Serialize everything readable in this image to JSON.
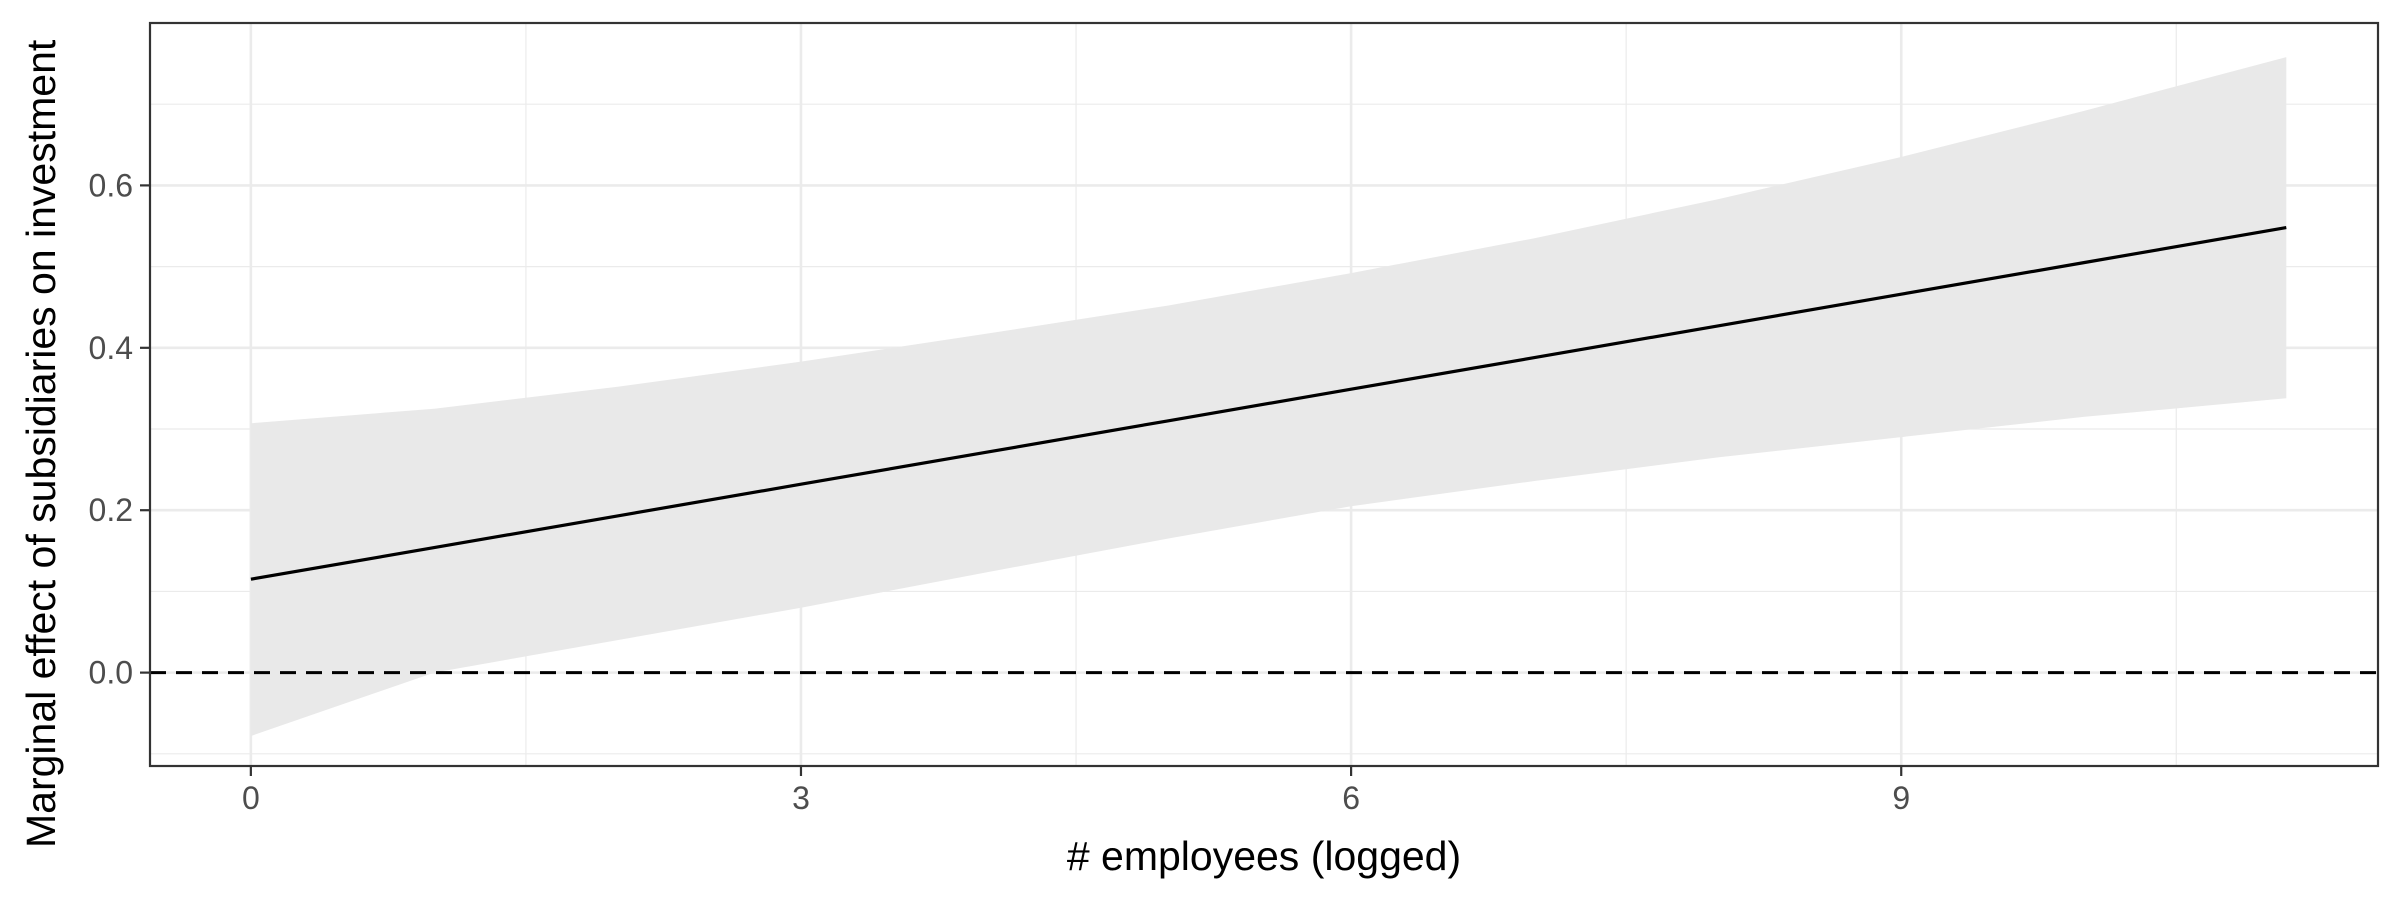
{
  "chart_data": {
    "type": "line",
    "title": "",
    "xlabel": "# employees (logged)",
    "ylabel": "Marginal effect of subsidiaries on investment",
    "xlim": [
      -0.55,
      11.6
    ],
    "ylim": [
      -0.115,
      0.8
    ],
    "x_ticks": [
      0,
      3,
      6,
      9
    ],
    "x_tick_labels": [
      "0",
      "3",
      "6",
      "9"
    ],
    "y_ticks": [
      0.0,
      0.2,
      0.4,
      0.6
    ],
    "y_tick_labels": [
      "0.0",
      "0.2",
      "0.4",
      "0.6"
    ],
    "grid": true,
    "reference_line": {
      "y": 0,
      "style": "dashed"
    },
    "series": [
      {
        "x": [
          0,
          1,
          2,
          3,
          4,
          5,
          6,
          7,
          8,
          9,
          10,
          11.1
        ],
        "y": [
          0.115,
          0.154,
          0.193,
          0.232,
          0.271,
          0.31,
          0.349,
          0.388,
          0.427,
          0.466,
          0.505,
          0.548
        ],
        "ci_lower": [
          -0.078,
          0.0,
          0.04,
          0.08,
          0.123,
          0.165,
          0.205,
          0.236,
          0.265,
          0.29,
          0.315,
          0.338
        ],
        "ci_upper": [
          0.307,
          0.325,
          0.352,
          0.383,
          0.417,
          0.452,
          0.492,
          0.535,
          0.583,
          0.635,
          0.692,
          0.758
        ]
      }
    ],
    "colors": {
      "line": "#000000",
      "ribbon": "#e9e9e9",
      "grid": "#ebebeb",
      "panel_border": "#333333"
    }
  }
}
